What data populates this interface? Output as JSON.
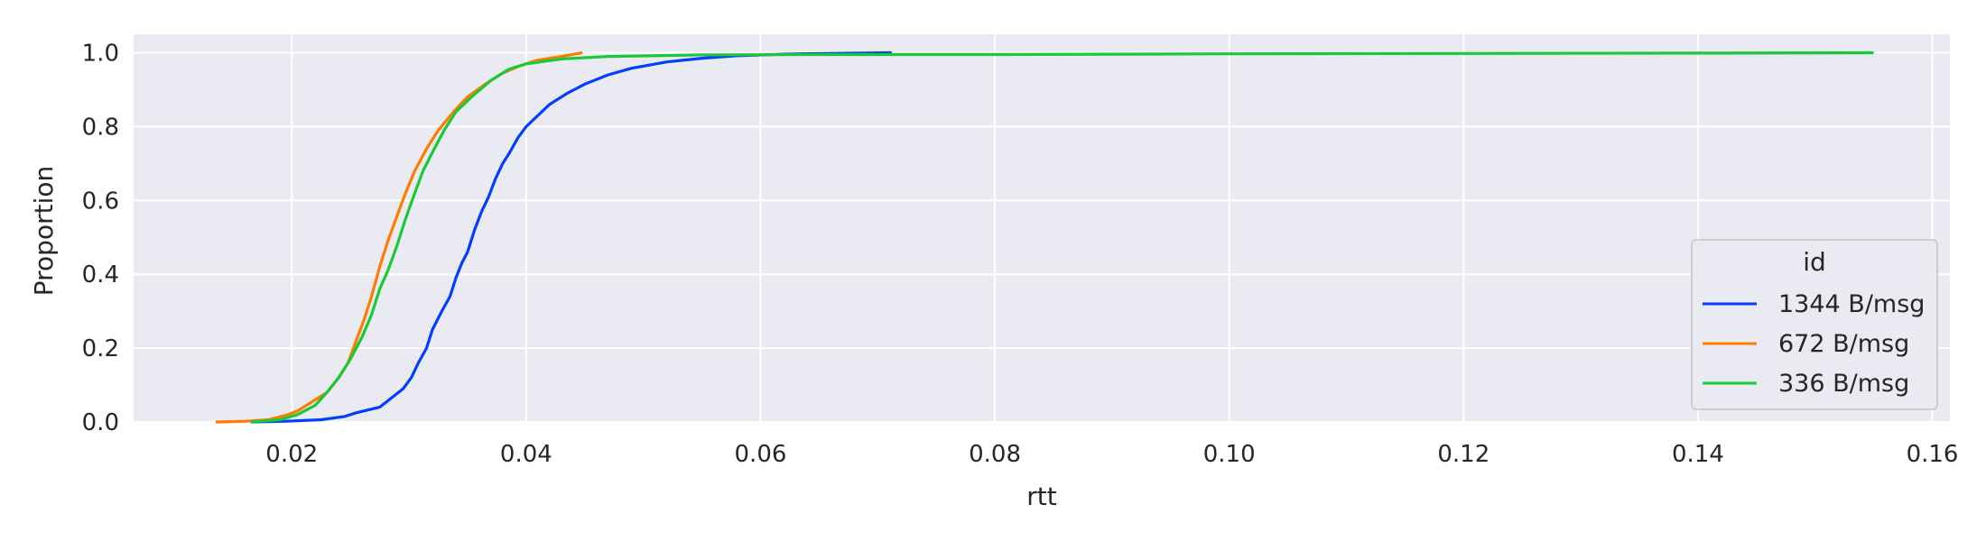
{
  "chart_data": {
    "type": "line",
    "xlabel": "rtt",
    "ylabel": "Proportion",
    "xlim": [
      0.0065,
      0.1615
    ],
    "ylim": [
      0.0,
      1.05
    ],
    "x_ticks": [
      "0.02",
      "0.04",
      "0.06",
      "0.08",
      "0.10",
      "0.12",
      "0.14",
      "0.16"
    ],
    "y_ticks": [
      "0.0",
      "0.2",
      "0.4",
      "0.6",
      "0.8",
      "1.0"
    ],
    "grid": true,
    "background": "#eaeaf2",
    "legend": {
      "title": "id",
      "placement": "lower-right"
    },
    "series": [
      {
        "name": "1344 B/msg",
        "color": "#023eff",
        "points": [
          [
            0.0165,
            0.0
          ],
          [
            0.0195,
            0.002
          ],
          [
            0.0225,
            0.006
          ],
          [
            0.0245,
            0.015
          ],
          [
            0.0255,
            0.025
          ],
          [
            0.0275,
            0.04
          ],
          [
            0.0285,
            0.065
          ],
          [
            0.0295,
            0.09
          ],
          [
            0.0302,
            0.12
          ],
          [
            0.0308,
            0.16
          ],
          [
            0.0315,
            0.2
          ],
          [
            0.032,
            0.25
          ],
          [
            0.0328,
            0.3
          ],
          [
            0.0335,
            0.34
          ],
          [
            0.034,
            0.39
          ],
          [
            0.0345,
            0.43
          ],
          [
            0.035,
            0.46
          ],
          [
            0.0356,
            0.52
          ],
          [
            0.0362,
            0.57
          ],
          [
            0.0368,
            0.61
          ],
          [
            0.0374,
            0.66
          ],
          [
            0.038,
            0.7
          ],
          [
            0.0386,
            0.73
          ],
          [
            0.0393,
            0.77
          ],
          [
            0.04,
            0.8
          ],
          [
            0.041,
            0.83
          ],
          [
            0.042,
            0.86
          ],
          [
            0.0435,
            0.89
          ],
          [
            0.045,
            0.915
          ],
          [
            0.047,
            0.94
          ],
          [
            0.049,
            0.958
          ],
          [
            0.052,
            0.975
          ],
          [
            0.055,
            0.985
          ],
          [
            0.058,
            0.992
          ],
          [
            0.062,
            0.996
          ],
          [
            0.066,
            0.998
          ],
          [
            0.0712,
            1.0
          ]
        ]
      },
      {
        "name": "672 B/msg",
        "color": "#ff7c00",
        "points": [
          [
            0.0135,
            0.0
          ],
          [
            0.016,
            0.002
          ],
          [
            0.018,
            0.006
          ],
          [
            0.0195,
            0.018
          ],
          [
            0.0205,
            0.03
          ],
          [
            0.022,
            0.06
          ],
          [
            0.023,
            0.08
          ],
          [
            0.024,
            0.12
          ],
          [
            0.0248,
            0.16
          ],
          [
            0.0255,
            0.22
          ],
          [
            0.0262,
            0.28
          ],
          [
            0.0268,
            0.34
          ],
          [
            0.0275,
            0.42
          ],
          [
            0.0282,
            0.49
          ],
          [
            0.029,
            0.56
          ],
          [
            0.0297,
            0.62
          ],
          [
            0.0305,
            0.68
          ],
          [
            0.0315,
            0.74
          ],
          [
            0.0325,
            0.79
          ],
          [
            0.0338,
            0.84
          ],
          [
            0.035,
            0.88
          ],
          [
            0.0365,
            0.915
          ],
          [
            0.038,
            0.945
          ],
          [
            0.0395,
            0.965
          ],
          [
            0.041,
            0.98
          ],
          [
            0.043,
            0.99
          ],
          [
            0.0448,
            1.0
          ]
        ]
      },
      {
        "name": "336 B/msg",
        "color": "#1ac938",
        "points": [
          [
            0.0165,
            0.0
          ],
          [
            0.019,
            0.006
          ],
          [
            0.0205,
            0.02
          ],
          [
            0.022,
            0.045
          ],
          [
            0.023,
            0.08
          ],
          [
            0.024,
            0.12
          ],
          [
            0.025,
            0.17
          ],
          [
            0.026,
            0.23
          ],
          [
            0.0268,
            0.29
          ],
          [
            0.0275,
            0.36
          ],
          [
            0.0282,
            0.41
          ],
          [
            0.029,
            0.48
          ],
          [
            0.0297,
            0.55
          ],
          [
            0.0305,
            0.62
          ],
          [
            0.0312,
            0.68
          ],
          [
            0.032,
            0.73
          ],
          [
            0.033,
            0.79
          ],
          [
            0.034,
            0.84
          ],
          [
            0.0355,
            0.885
          ],
          [
            0.037,
            0.925
          ],
          [
            0.0385,
            0.955
          ],
          [
            0.04,
            0.97
          ],
          [
            0.043,
            0.983
          ],
          [
            0.047,
            0.99
          ],
          [
            0.055,
            0.994
          ],
          [
            0.065,
            0.995
          ],
          [
            0.08,
            0.995
          ],
          [
            0.1,
            0.997
          ],
          [
            0.12,
            0.998
          ],
          [
            0.14,
            0.999
          ],
          [
            0.155,
            1.0
          ]
        ]
      }
    ]
  }
}
